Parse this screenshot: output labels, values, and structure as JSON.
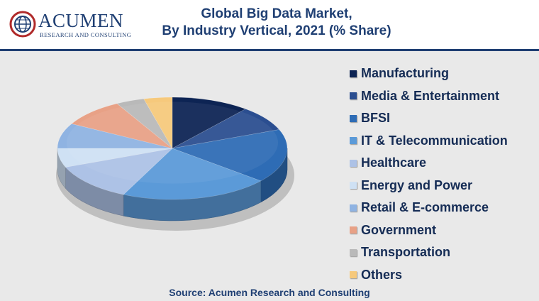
{
  "header": {
    "logo_name": "ACUMEN",
    "logo_tagline": "RESEARCH AND CONSULTING",
    "title_line1": "Global Big Data Market,",
    "title_line2": "By Industry Vertical, 2021 (% Share)"
  },
  "source": "Source: Acumen Research and Consulting",
  "colors": {
    "brand": "#1f3f73",
    "logo_accent": "#b02a2a",
    "background": "#e9e9e9"
  },
  "chart_data": {
    "type": "pie",
    "style": "3d",
    "legend_position": "right",
    "slices": [
      {
        "label": "Manufacturing",
        "value": 11,
        "color": "#0d2454"
      },
      {
        "label": "Media & Entertainment",
        "value": 8,
        "color": "#2b4e90"
      },
      {
        "label": "BFSI",
        "value": 17,
        "color": "#2e6cb5"
      },
      {
        "label": "IT & Telecommunication",
        "value": 21,
        "color": "#5b9ad8"
      },
      {
        "label": "Healthcare",
        "value": 12,
        "color": "#adc2e6"
      },
      {
        "label": "Energy and Power",
        "value": 6,
        "color": "#cfe1f4"
      },
      {
        "label": "Retail & E-commerce",
        "value": 8,
        "color": "#8fb3e2"
      },
      {
        "label": "Government",
        "value": 9,
        "color": "#e8a186"
      },
      {
        "label": "Transportation",
        "value": 4,
        "color": "#b9b9b9"
      },
      {
        "label": "Others",
        "value": 4,
        "color": "#f6c97c"
      }
    ]
  }
}
